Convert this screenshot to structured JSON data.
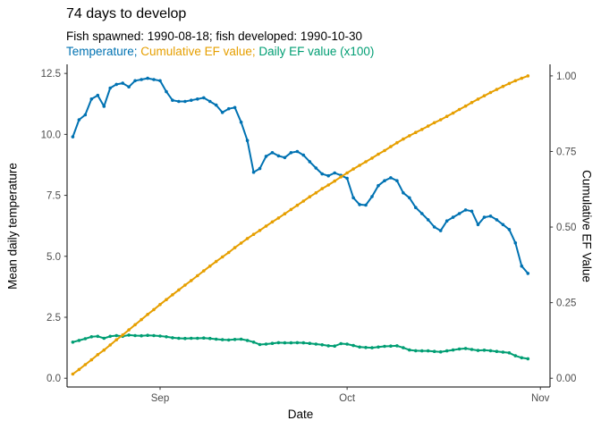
{
  "header": {
    "title": "74 days to develop",
    "subtitle": "Fish spawned: 1990-08-18; fish developed: 1990-10-30",
    "legend_separator": "; ",
    "legend": [
      {
        "label": "Temperature",
        "color": "#0072B2"
      },
      {
        "label": "Cumulative EF value",
        "color": "#E69F00"
      },
      {
        "label": "Daily EF value (x100)",
        "color": "#009E73"
      }
    ]
  },
  "chart_data": {
    "type": "line",
    "title": "74 days to develop",
    "subtitle": "Fish spawned: 1990-08-18; fish developed: 1990-10-30",
    "grid": false,
    "legend_position": "inline-subtitle",
    "x_axis": {
      "label": "Date",
      "tick_labels": [
        "Sep",
        "Oct",
        "Nov"
      ],
      "tick_day_index": [
        14,
        44,
        75
      ],
      "start_date": "1990-08-18",
      "end_date": "1990-10-30",
      "interval": "daily"
    },
    "y_axis_left": {
      "label": "Mean daily temperature",
      "tick_values": [
        0,
        2.5,
        5,
        7.5,
        10,
        12.5
      ],
      "tick_labels": [
        "0.0",
        "2.5",
        "5.0",
        "7.5",
        "10.0",
        "12.5"
      ],
      "range": [
        0,
        12.5
      ]
    },
    "y_axis_right": {
      "label": "Cumulative EF Value",
      "tick_values": [
        0,
        0.25,
        0.5,
        0.75,
        1.0
      ],
      "tick_labels": [
        "0.00",
        "0.25",
        "0.50",
        "0.75",
        "1.00"
      ],
      "range": [
        0,
        1.0
      ]
    },
    "dates": [
      "1990-08-18",
      "1990-08-19",
      "1990-08-20",
      "1990-08-21",
      "1990-08-22",
      "1990-08-23",
      "1990-08-24",
      "1990-08-25",
      "1990-08-26",
      "1990-08-27",
      "1990-08-28",
      "1990-08-29",
      "1990-08-30",
      "1990-08-31",
      "1990-09-01",
      "1990-09-02",
      "1990-09-03",
      "1990-09-04",
      "1990-09-05",
      "1990-09-06",
      "1990-09-07",
      "1990-09-08",
      "1990-09-09",
      "1990-09-10",
      "1990-09-11",
      "1990-09-12",
      "1990-09-13",
      "1990-09-14",
      "1990-09-15",
      "1990-09-16",
      "1990-09-17",
      "1990-09-18",
      "1990-09-19",
      "1990-09-20",
      "1990-09-21",
      "1990-09-22",
      "1990-09-23",
      "1990-09-24",
      "1990-09-25",
      "1990-09-26",
      "1990-09-27",
      "1990-09-28",
      "1990-09-29",
      "1990-09-30",
      "1990-10-01",
      "1990-10-02",
      "1990-10-03",
      "1990-10-04",
      "1990-10-05",
      "1990-10-06",
      "1990-10-07",
      "1990-10-08",
      "1990-10-09",
      "1990-10-10",
      "1990-10-11",
      "1990-10-12",
      "1990-10-13",
      "1990-10-14",
      "1990-10-15",
      "1990-10-16",
      "1990-10-17",
      "1990-10-18",
      "1990-10-19",
      "1990-10-20",
      "1990-10-21",
      "1990-10-22",
      "1990-10-23",
      "1990-10-24",
      "1990-10-25",
      "1990-10-26",
      "1990-10-27",
      "1990-10-28",
      "1990-10-29",
      "1990-10-30"
    ],
    "series": [
      {
        "name": "Temperature",
        "color": "#0072B2",
        "axis": "left",
        "values": [
          9.9,
          10.6,
          10.8,
          11.45,
          11.6,
          11.15,
          11.9,
          12.05,
          12.1,
          11.95,
          12.2,
          12.25,
          12.3,
          12.25,
          12.2,
          11.75,
          11.4,
          11.35,
          11.35,
          11.4,
          11.45,
          11.5,
          11.35,
          11.2,
          10.9,
          11.05,
          11.1,
          10.5,
          9.75,
          8.45,
          8.6,
          9.1,
          9.25,
          9.12,
          9.05,
          9.25,
          9.3,
          9.15,
          8.88,
          8.62,
          8.38,
          8.3,
          8.42,
          8.32,
          8.2,
          7.4,
          7.12,
          7.1,
          7.45,
          7.9,
          8.1,
          8.22,
          8.1,
          7.6,
          7.4,
          7.0,
          6.75,
          6.5,
          6.2,
          6.05,
          6.45,
          6.6,
          6.75,
          6.9,
          6.85,
          6.3,
          6.6,
          6.65,
          6.5,
          6.3,
          6.1,
          5.55,
          4.6,
          4.3
        ]
      },
      {
        "name": "Cumulative EF value",
        "color": "#E69F00",
        "axis": "right",
        "values": [
          0.014,
          0.029,
          0.045,
          0.061,
          0.078,
          0.093,
          0.11,
          0.127,
          0.143,
          0.16,
          0.177,
          0.194,
          0.211,
          0.227,
          0.244,
          0.26,
          0.276,
          0.292,
          0.308,
          0.323,
          0.339,
          0.355,
          0.371,
          0.386,
          0.401,
          0.416,
          0.432,
          0.447,
          0.462,
          0.476,
          0.489,
          0.503,
          0.517,
          0.53,
          0.544,
          0.558,
          0.572,
          0.586,
          0.6,
          0.613,
          0.627,
          0.639,
          0.652,
          0.666,
          0.679,
          0.692,
          0.704,
          0.716,
          0.728,
          0.741,
          0.753,
          0.766,
          0.779,
          0.791,
          0.802,
          0.813,
          0.823,
          0.834,
          0.845,
          0.855,
          0.866,
          0.877,
          0.889,
          0.9,
          0.912,
          0.923,
          0.934,
          0.945,
          0.955,
          0.965,
          0.975,
          0.984,
          0.992,
          1.0
        ]
      },
      {
        "name": "Daily EF value (x100)",
        "color": "#009E73",
        "axis": "left",
        "values": [
          1.48,
          1.55,
          1.62,
          1.7,
          1.72,
          1.64,
          1.72,
          1.75,
          1.72,
          1.77,
          1.75,
          1.74,
          1.76,
          1.75,
          1.73,
          1.7,
          1.66,
          1.64,
          1.63,
          1.64,
          1.64,
          1.65,
          1.63,
          1.6,
          1.58,
          1.57,
          1.59,
          1.6,
          1.55,
          1.48,
          1.38,
          1.4,
          1.43,
          1.46,
          1.45,
          1.45,
          1.46,
          1.45,
          1.43,
          1.4,
          1.37,
          1.33,
          1.32,
          1.42,
          1.4,
          1.34,
          1.28,
          1.26,
          1.25,
          1.28,
          1.31,
          1.32,
          1.33,
          1.25,
          1.16,
          1.13,
          1.12,
          1.12,
          1.1,
          1.08,
          1.12,
          1.16,
          1.2,
          1.22,
          1.18,
          1.14,
          1.15,
          1.13,
          1.1,
          1.07,
          1.04,
          0.92,
          0.84,
          0.8
        ]
      }
    ]
  }
}
